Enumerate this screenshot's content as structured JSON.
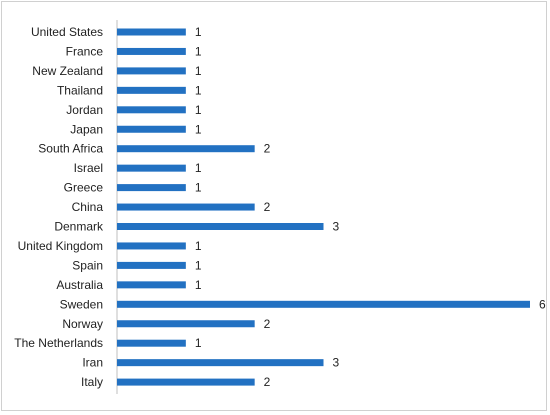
{
  "chart_data": {
    "type": "bar",
    "orientation": "horizontal",
    "title": "",
    "xlabel": "",
    "ylabel": "",
    "categories": [
      "United States",
      "France",
      "New Zealand",
      "Thailand",
      "Jordan",
      "Japan",
      "South Africa",
      "Israel",
      "Greece",
      "China",
      "Denmark",
      "United Kingdom",
      "Spain",
      "Australia",
      "Sweden",
      "Norway",
      "The Netherlands",
      "Iran",
      "Italy"
    ],
    "values": [
      1,
      1,
      1,
      1,
      1,
      1,
      2,
      1,
      1,
      2,
      3,
      1,
      1,
      1,
      6,
      2,
      1,
      3,
      2
    ],
    "xlim": [
      0,
      6
    ],
    "grid": false,
    "legend": "none",
    "data_labels": true,
    "bar_color": "#2271c2"
  }
}
